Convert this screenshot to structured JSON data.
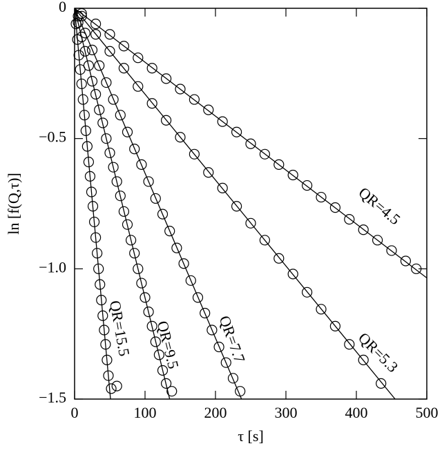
{
  "chart_data": {
    "type": "scatter",
    "x_label": "τ [s]",
    "y_label": "ln [f(Q,τ)]",
    "xlim": [
      0,
      500
    ],
    "ylim": [
      -1.5,
      0
    ],
    "xticks": [
      0,
      100,
      200,
      300,
      400,
      500
    ],
    "yticks": [
      0,
      {
        "value": -0.5,
        "label": "−0.5"
      },
      {
        "value": -1,
        "label": "−1.0"
      },
      {
        "value": -1.5,
        "label": "−1.5"
      }
    ],
    "grid": false,
    "color": "#000000",
    "series": [
      {
        "name": "QR=4.5",
        "x": [
          10,
          30,
          50,
          70,
          90,
          110,
          130,
          150,
          170,
          190,
          210,
          230,
          250,
          270,
          290,
          310,
          330,
          350,
          370,
          390,
          410,
          430,
          450,
          470,
          485
        ],
        "values": [
          -0.02,
          -0.06,
          -0.1,
          -0.145,
          -0.19,
          -0.23,
          -0.27,
          -0.31,
          -0.35,
          -0.39,
          -0.435,
          -0.475,
          -0.52,
          -0.56,
          -0.6,
          -0.64,
          -0.68,
          -0.725,
          -0.765,
          -0.81,
          -0.85,
          -0.89,
          -0.93,
          -0.97,
          -1.0
        ],
        "fit": {
          "x": [
            0,
            500
          ],
          "y": [
            0,
            -1.035
          ]
        }
      },
      {
        "name": "QR=5.3",
        "x": [
          10,
          30,
          50,
          70,
          90,
          110,
          130,
          150,
          170,
          190,
          210,
          230,
          250,
          270,
          290,
          310,
          330,
          350,
          370,
          390,
          410,
          435
        ],
        "values": [
          -0.03,
          -0.1,
          -0.165,
          -0.23,
          -0.3,
          -0.365,
          -0.43,
          -0.495,
          -0.56,
          -0.63,
          -0.69,
          -0.76,
          -0.825,
          -0.89,
          -0.96,
          -1.02,
          -1.09,
          -1.155,
          -1.22,
          -1.29,
          -1.35,
          -1.44
        ],
        "fit": {
          "x": [
            0,
            455
          ],
          "y": [
            0,
            -1.5
          ]
        }
      },
      {
        "name": "QR=7.7",
        "x": [
          5,
          15,
          25,
          35,
          45,
          55,
          65,
          75,
          85,
          95,
          105,
          115,
          125,
          135,
          145,
          155,
          165,
          175,
          185,
          195,
          205,
          215,
          225,
          235
        ],
        "values": [
          -0.03,
          -0.095,
          -0.16,
          -0.22,
          -0.285,
          -0.35,
          -0.41,
          -0.475,
          -0.54,
          -0.6,
          -0.665,
          -0.73,
          -0.79,
          -0.855,
          -0.92,
          -0.98,
          -1.045,
          -1.11,
          -1.17,
          -1.235,
          -1.3,
          -1.36,
          -1.42,
          -1.47
        ],
        "fit": {
          "x": [
            0,
            237
          ],
          "y": [
            0,
            -1.5
          ]
        }
      },
      {
        "name": "QR=9.5",
        "x": [
          5,
          10,
          15,
          20,
          25,
          30,
          35,
          40,
          45,
          50,
          55,
          60,
          65,
          70,
          75,
          80,
          85,
          90,
          95,
          100,
          105,
          110,
          115,
          120,
          125,
          130,
          138
        ],
        "values": [
          -0.055,
          -0.11,
          -0.165,
          -0.22,
          -0.28,
          -0.33,
          -0.39,
          -0.44,
          -0.5,
          -0.555,
          -0.61,
          -0.665,
          -0.72,
          -0.78,
          -0.83,
          -0.89,
          -0.94,
          -1.0,
          -1.055,
          -1.11,
          -1.165,
          -1.22,
          -1.28,
          -1.33,
          -1.39,
          -1.44,
          -1.47
        ],
        "fit": {
          "x": [
            0,
            135
          ],
          "y": [
            0,
            -1.5
          ]
        }
      },
      {
        "name": "QR=15.5",
        "x": [
          2,
          4,
          6,
          8,
          10,
          12,
          14,
          16,
          18,
          20,
          22,
          24,
          26,
          28,
          30,
          32,
          34,
          36,
          38,
          40,
          42,
          44,
          46,
          48,
          52,
          60
        ],
        "values": [
          -0.06,
          -0.12,
          -0.18,
          -0.235,
          -0.29,
          -0.35,
          -0.41,
          -0.47,
          -0.53,
          -0.59,
          -0.645,
          -0.705,
          -0.76,
          -0.82,
          -0.88,
          -0.94,
          -1.0,
          -1.06,
          -1.12,
          -1.18,
          -1.235,
          -1.29,
          -1.35,
          -1.41,
          -1.46,
          -1.45
        ],
        "fit": {
          "x": [
            0,
            51
          ],
          "y": [
            0,
            -1.5
          ]
        }
      }
    ]
  }
}
